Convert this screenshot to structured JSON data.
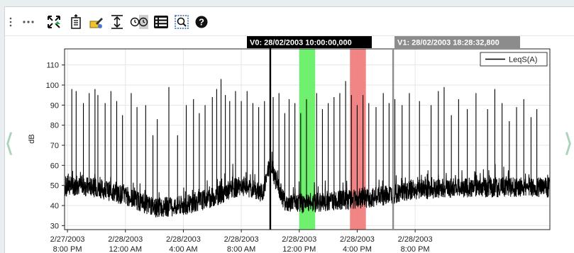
{
  "toolbar": {
    "items": [
      {
        "name": "more-options",
        "icon": "vertical-dots-icon"
      },
      {
        "name": "ellipsis",
        "icon": "ellipsis-icon"
      },
      {
        "name": "auto-scale",
        "icon": "expand-arrows-icon"
      },
      {
        "name": "export",
        "icon": "document-export-icon"
      },
      {
        "name": "settings",
        "icon": "pencil-clip-icon"
      },
      {
        "name": "fit-vertical",
        "icon": "vertical-fit-icon"
      },
      {
        "name": "time-cursors",
        "icon": "double-clock-icon"
      },
      {
        "name": "table-view",
        "icon": "list-icon"
      },
      {
        "name": "zoom",
        "icon": "zoom-icon"
      },
      {
        "name": "help",
        "icon": "help-icon"
      }
    ]
  },
  "navigation": {
    "prev_glyph": "⟨",
    "next_glyph": "⟩"
  },
  "cursors": {
    "v0": {
      "label": "V0: 28/02/2003 10:00:00,000",
      "color": "#000000"
    },
    "v1": {
      "label": "V1: 28/02/2003 18:28:32,800",
      "color": "#8c8c8c"
    }
  },
  "chart_data": {
    "type": "line",
    "ylabel": "dB",
    "xlabel": "",
    "ylim": [
      28,
      118
    ],
    "yticks": [
      30,
      40,
      50,
      60,
      70,
      80,
      90,
      100,
      110
    ],
    "x_unit": "hours since 2/27/2003 8:00 PM",
    "xlim": [
      -0.2,
      33.3
    ],
    "xticks": [
      {
        "x": 0,
        "line1": "2/27/2003",
        "line2": "8:00 PM"
      },
      {
        "x": 4,
        "line1": "2/28/2003",
        "line2": "12:00 AM"
      },
      {
        "x": 8,
        "line1": "2/28/2003",
        "line2": "4:00 AM"
      },
      {
        "x": 12,
        "line1": "2/28/2003",
        "line2": "8:00 AM"
      },
      {
        "x": 16,
        "line1": "2/28/2003",
        "line2": "12:00 PM"
      },
      {
        "x": 20,
        "line1": "2/28/2003",
        "line2": "4:00 PM"
      },
      {
        "x": 24,
        "line1": "2/28/2003",
        "line2": "8:00 PM"
      }
    ],
    "grid": true,
    "legend": {
      "position": "top-right",
      "entries": [
        "LeqS(A)"
      ]
    },
    "series": [
      {
        "name": "LeqS(A)",
        "color": "#000000",
        "baseline": [
          {
            "x": 0,
            "y": 50
          },
          {
            "x": 2,
            "y": 49
          },
          {
            "x": 4,
            "y": 45
          },
          {
            "x": 6,
            "y": 39
          },
          {
            "x": 8,
            "y": 40
          },
          {
            "x": 10,
            "y": 44
          },
          {
            "x": 12,
            "y": 50
          },
          {
            "x": 13.5,
            "y": 46
          },
          {
            "x": 14,
            "y": 62
          },
          {
            "x": 14.4,
            "y": 52
          },
          {
            "x": 15,
            "y": 42
          },
          {
            "x": 16,
            "y": 41
          },
          {
            "x": 18,
            "y": 42
          },
          {
            "x": 20,
            "y": 43
          },
          {
            "x": 22,
            "y": 45
          },
          {
            "x": 24,
            "y": 48
          },
          {
            "x": 28,
            "y": 49
          },
          {
            "x": 33.3,
            "y": 49
          }
        ],
        "noise_db": 5,
        "spikes": [
          {
            "x": 0.3,
            "y": 98
          },
          {
            "x": 0.6,
            "y": 97
          },
          {
            "x": 1.1,
            "y": 91
          },
          {
            "x": 1.5,
            "y": 96
          },
          {
            "x": 1.9,
            "y": 98
          },
          {
            "x": 2.1,
            "y": 95
          },
          {
            "x": 2.6,
            "y": 91
          },
          {
            "x": 3.0,
            "y": 97
          },
          {
            "x": 3.4,
            "y": 92
          },
          {
            "x": 3.8,
            "y": 85
          },
          {
            "x": 4.4,
            "y": 96
          },
          {
            "x": 4.8,
            "y": 89
          },
          {
            "x": 5.4,
            "y": 90
          },
          {
            "x": 5.9,
            "y": 75
          },
          {
            "x": 6.2,
            "y": 83
          },
          {
            "x": 7.0,
            "y": 99
          },
          {
            "x": 7.6,
            "y": 75
          },
          {
            "x": 8.2,
            "y": 90
          },
          {
            "x": 8.7,
            "y": 93
          },
          {
            "x": 9.1,
            "y": 86
          },
          {
            "x": 9.5,
            "y": 90
          },
          {
            "x": 10.0,
            "y": 94
          },
          {
            "x": 10.3,
            "y": 98
          },
          {
            "x": 10.6,
            "y": 103
          },
          {
            "x": 10.9,
            "y": 95
          },
          {
            "x": 11.2,
            "y": 92
          },
          {
            "x": 11.6,
            "y": 97
          },
          {
            "x": 12.0,
            "y": 92
          },
          {
            "x": 12.4,
            "y": 97
          },
          {
            "x": 12.8,
            "y": 91
          },
          {
            "x": 13.2,
            "y": 89
          },
          {
            "x": 13.6,
            "y": 92
          },
          {
            "x": 14.2,
            "y": 94
          },
          {
            "x": 14.6,
            "y": 96
          },
          {
            "x": 15.0,
            "y": 86
          },
          {
            "x": 15.3,
            "y": 93
          },
          {
            "x": 15.7,
            "y": 91
          },
          {
            "x": 16.1,
            "y": 86
          },
          {
            "x": 16.5,
            "y": 93
          },
          {
            "x": 17.2,
            "y": 96
          },
          {
            "x": 17.6,
            "y": 88
          },
          {
            "x": 18.0,
            "y": 91
          },
          {
            "x": 18.4,
            "y": 94
          },
          {
            "x": 18.8,
            "y": 96
          },
          {
            "x": 19.2,
            "y": 102
          },
          {
            "x": 19.6,
            "y": 95
          },
          {
            "x": 20.0,
            "y": 90
          },
          {
            "x": 20.4,
            "y": 95
          },
          {
            "x": 20.8,
            "y": 91
          },
          {
            "x": 21.3,
            "y": 89
          },
          {
            "x": 21.8,
            "y": 96
          },
          {
            "x": 22.2,
            "y": 91
          },
          {
            "x": 22.6,
            "y": 93
          },
          {
            "x": 23.1,
            "y": 90
          },
          {
            "x": 23.6,
            "y": 96
          },
          {
            "x": 24.3,
            "y": 92
          },
          {
            "x": 25.1,
            "y": 90
          },
          {
            "x": 25.6,
            "y": 97
          },
          {
            "x": 26.0,
            "y": 99
          },
          {
            "x": 26.5,
            "y": 85
          },
          {
            "x": 27.0,
            "y": 93
          },
          {
            "x": 27.6,
            "y": 88
          },
          {
            "x": 28.2,
            "y": 96
          },
          {
            "x": 29.0,
            "y": 88
          },
          {
            "x": 29.5,
            "y": 98
          },
          {
            "x": 30.0,
            "y": 91
          },
          {
            "x": 30.5,
            "y": 82
          },
          {
            "x": 31.0,
            "y": 89
          },
          {
            "x": 31.5,
            "y": 93
          },
          {
            "x": 32.0,
            "y": 84
          },
          {
            "x": 32.4,
            "y": 88
          }
        ]
      }
    ],
    "cursor_lines": [
      {
        "id": "v0",
        "x": 14.0,
        "color": "#000000"
      },
      {
        "id": "v1",
        "x": 22.48,
        "color": "#8c8c8c"
      }
    ],
    "highlight_bands": [
      {
        "x0": 16.0,
        "x1": 17.1,
        "color": "#5ff05f"
      },
      {
        "x0": 19.5,
        "x1": 20.6,
        "color": "#f07878"
      }
    ]
  }
}
